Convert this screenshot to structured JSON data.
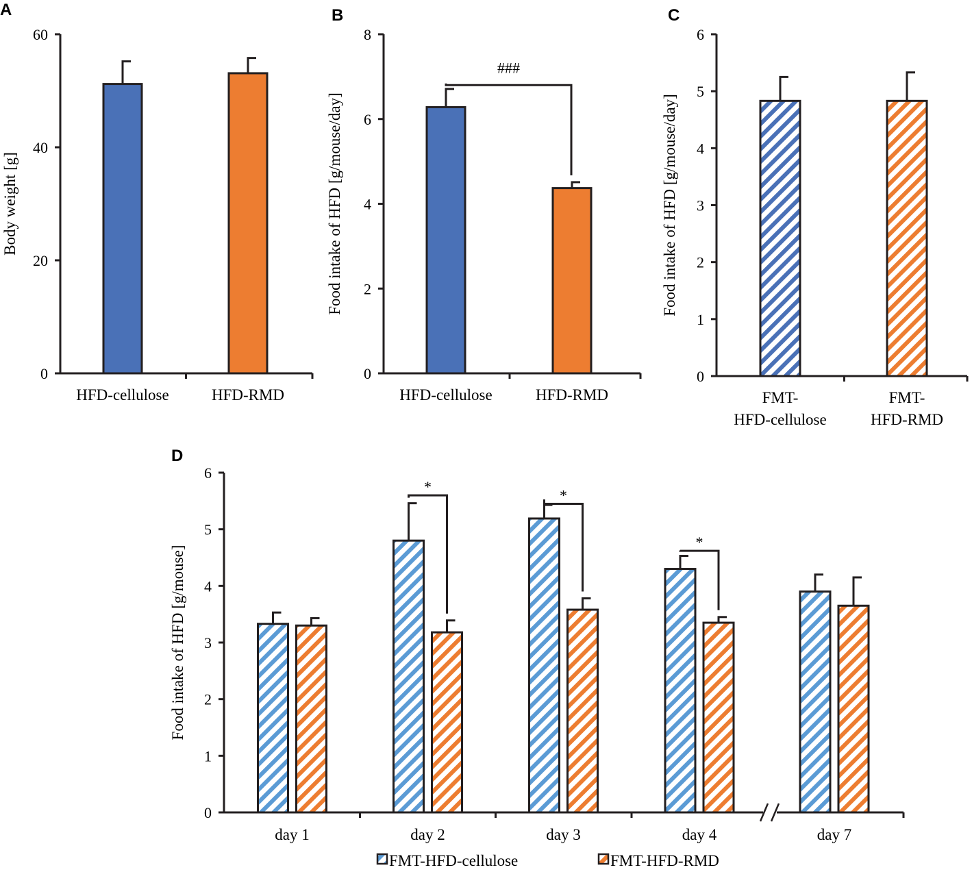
{
  "figure": {
    "colors": {
      "blue_solid": "#4A71B7",
      "orange_solid": "#ED7D31",
      "blue_hatch_c": "#4A71B7",
      "blue_hatch_d": "#5B9BD5",
      "orange_hatch": "#ED7D31",
      "ink": "#231F20"
    }
  },
  "chart_data": [
    {
      "panel": "A",
      "type": "bar",
      "fill": "solid",
      "categories": [
        "HFD-cellulose",
        "HFD-RMD"
      ],
      "values": [
        51.2,
        53.1
      ],
      "errors": [
        4.0,
        2.7
      ],
      "ylabel": "Body weight [g]",
      "ylim": [
        0,
        60
      ],
      "yticks": [
        "0",
        "20",
        "40",
        "60"
      ],
      "significance": []
    },
    {
      "panel": "B",
      "type": "bar",
      "fill": "solid",
      "categories": [
        "HFD-cellulose",
        "HFD-RMD"
      ],
      "values": [
        6.28,
        4.37
      ],
      "errors": [
        0.43,
        0.14
      ],
      "ylabel": "Food intake of HFD [g/mouse/day]",
      "ylim": [
        0,
        8
      ],
      "yticks": [
        "0",
        "2",
        "4",
        "6",
        "8"
      ],
      "significance": [
        {
          "from": 0,
          "to": 1,
          "label": "###",
          "y": 6.8
        }
      ]
    },
    {
      "panel": "C",
      "type": "bar",
      "fill": "hatched",
      "categories": [
        "FMT-\nHFD-cellulose",
        "FMT-\nHFD-RMD"
      ],
      "values": [
        4.83,
        4.83
      ],
      "errors": [
        0.42,
        0.5
      ],
      "ylabel": "Food intake of HFD [g/mouse/day]",
      "ylim": [
        0,
        6
      ],
      "yticks": [
        "0",
        "1",
        "2",
        "3",
        "4",
        "5",
        "6"
      ],
      "significance": []
    },
    {
      "panel": "D",
      "type": "bar",
      "fill": "hatched",
      "categories": [
        "day 1",
        "day 2",
        "day 3",
        "day 4",
        "day 7"
      ],
      "series": [
        {
          "name": "FMT-HFD-cellulose",
          "values": [
            3.33,
            4.8,
            5.19,
            4.3,
            3.9
          ],
          "errors": [
            0.2,
            0.66,
            0.24,
            0.23,
            0.3
          ]
        },
        {
          "name": "FMT-HFD-RMD",
          "values": [
            3.3,
            3.18,
            3.58,
            3.35,
            3.65
          ],
          "errors": [
            0.13,
            0.21,
            0.2,
            0.1,
            0.5
          ]
        }
      ],
      "ylabel": "Food intake of HFD [g/mouse]",
      "ylim": [
        0,
        6
      ],
      "yticks": [
        "0",
        "1",
        "2",
        "3",
        "4",
        "5",
        "6"
      ],
      "axis_break": "between day 4 and day 7",
      "significance": [
        {
          "category": 1,
          "label": "*",
          "y": 5.6
        },
        {
          "category": 2,
          "label": "*",
          "y": 5.45
        },
        {
          "category": 3,
          "label": "*",
          "y": 4.62
        }
      ],
      "legend": [
        "FMT-HFD-cellulose",
        "FMT-HFD-RMD"
      ],
      "legend_position": "bottom"
    }
  ]
}
